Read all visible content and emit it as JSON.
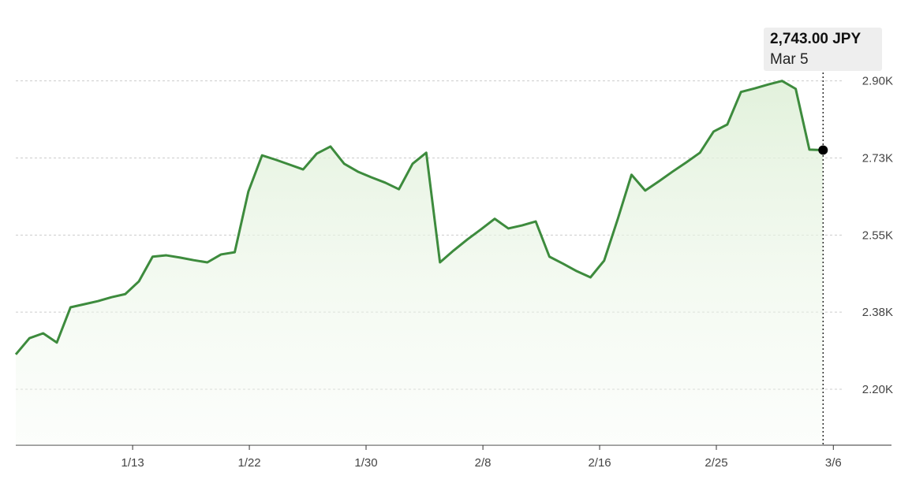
{
  "chart_data": {
    "type": "line",
    "x": [
      0,
      1,
      2,
      3,
      4,
      5,
      6,
      7,
      8,
      9,
      10,
      11,
      12,
      13,
      14,
      15,
      16,
      17,
      18,
      19,
      20,
      21,
      22,
      23,
      24,
      25,
      26,
      27,
      28,
      29,
      30,
      31,
      32,
      33,
      34,
      35,
      36,
      37,
      38,
      39,
      40,
      41,
      42,
      43,
      44,
      45,
      46,
      47,
      48,
      49,
      50,
      51,
      52,
      53,
      54,
      55,
      56,
      57,
      58,
      59
    ],
    "series": [
      {
        "color": "#3d8b3d",
        "values": [
          2279,
          2316,
          2327,
          2306,
          2386,
          2393,
          2400,
          2409,
          2416,
          2445,
          2501,
          2504,
          2499,
          2493,
          2488,
          2506,
          2511,
          2649,
          2731,
          2721,
          2710,
          2699,
          2735,
          2751,
          2712,
          2694,
          2681,
          2669,
          2654,
          2712,
          2737,
          2488,
          2515,
          2540,
          2563,
          2587,
          2565,
          2572,
          2581,
          2501,
          2485,
          2468,
          2454,
          2492,
          2587,
          2687,
          2651,
          2672,
          2694,
          2715,
          2737,
          2785,
          2801,
          2875,
          2883,
          2892,
          2900,
          2882,
          2744,
          2743
        ]
      }
    ],
    "xlim": [
      0,
      64
    ],
    "xticks": [
      {
        "value": 8.54,
        "label": "1/13"
      },
      {
        "value": 17.07,
        "label": "1/22"
      },
      {
        "value": 25.6,
        "label": "1/30"
      },
      {
        "value": 34.14,
        "label": "2/8"
      },
      {
        "value": 42.67,
        "label": "2/16"
      },
      {
        "value": 51.2,
        "label": "2/25"
      },
      {
        "value": 59.75,
        "label": "3/6"
      }
    ],
    "ylim": [
      2073,
      3030
    ],
    "yticks": [
      {
        "value": 2200,
        "label": "2.20K"
      },
      {
        "value": 2375,
        "label": "2.38K"
      },
      {
        "value": 2550,
        "label": "2.55K"
      },
      {
        "value": 2725,
        "label": "2.73K"
      },
      {
        "value": 2900,
        "label": "2.90K"
      }
    ],
    "grid": true,
    "tooltip": {
      "value": "2,743.00 JPY",
      "date": "Mar 5"
    }
  }
}
